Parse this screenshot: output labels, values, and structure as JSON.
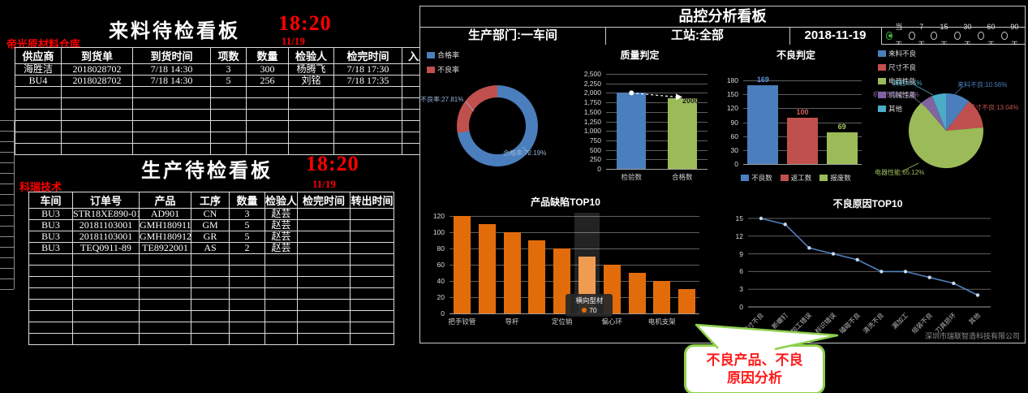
{
  "left": {
    "incoming": {
      "title": "来料待检看板",
      "clock": "18:20",
      "tag": "帝光原材料仓库",
      "date": "11/19",
      "columns": [
        "供应商",
        "到货单",
        "到货时间",
        "项数",
        "数量",
        "检验人",
        "检完时间",
        "入库时间"
      ],
      "rows": [
        [
          "海胜洁",
          "2018028702",
          "7/18 14:30",
          "3",
          "300",
          "杨腾飞",
          "7/18 17:30",
          ""
        ],
        [
          "BU4",
          "2018028702",
          "7/18 14:30",
          "5",
          "256",
          "刘铭",
          "7/18 17:35",
          ""
        ]
      ],
      "empty_rows": 6
    },
    "production": {
      "title": "生产待检看板",
      "clock": "18:20",
      "tag": "科瑞技术",
      "date": "11/19",
      "columns": [
        "车间",
        "订单号",
        "产品",
        "工序",
        "数量",
        "检验人",
        "检完时间",
        "转出时间"
      ],
      "rows": [
        [
          "BU3",
          "STR18XE890-01",
          "AD901",
          "CN",
          "3",
          "赵芸",
          "",
          ""
        ],
        [
          "BU3",
          "20181103001",
          "GMH180911",
          "GM",
          "5",
          "赵芸",
          "",
          ""
        ],
        [
          "BU3",
          "20181103001",
          "GMH180912",
          "GR",
          "5",
          "赵芸",
          "",
          ""
        ],
        [
          "BU3",
          "TEQ0911-89",
          "TE8922001",
          "AS",
          "2",
          "赵芸",
          "",
          ""
        ]
      ],
      "empty_rows": 8
    }
  },
  "panel": {
    "title": "品控分析看板",
    "filters": {
      "department": "生产部门:一车间",
      "station": "工站:全部",
      "date": "2018-11-19"
    },
    "periods": [
      {
        "label": "当天",
        "selected": true
      },
      {
        "label": "7天",
        "selected": false
      },
      {
        "label": "15天",
        "selected": false
      },
      {
        "label": "30天",
        "selected": false
      },
      {
        "label": "60天",
        "selected": false
      },
      {
        "label": "90天",
        "selected": false
      }
    ],
    "company": "深圳市瑞联智造科技有限公司",
    "callout": [
      "不良产品、不良",
      "原因分析"
    ]
  },
  "chart_data": [
    {
      "id": "pass-rate-donut",
      "type": "donut",
      "legend": [
        {
          "name": "合格率",
          "color": "#4a7ebc"
        },
        {
          "name": "不良率",
          "color": "#c0504d"
        }
      ],
      "series": [
        {
          "name": "合格率",
          "value": 72.19,
          "color": "#4a7ebc"
        },
        {
          "name": "不良率",
          "value": 27.81,
          "color": "#c0504d"
        }
      ],
      "labels": [
        {
          "text": "不良率:27.81%",
          "color": "#95b3d7"
        },
        {
          "text": "合格率:72.19%",
          "color": "#95b3d7"
        }
      ]
    },
    {
      "id": "quality-judge",
      "type": "bar",
      "title": "质量判定",
      "categories": [
        "检验数",
        "合格数"
      ],
      "values": [
        2000,
        1850
      ],
      "bar_colors": [
        "#4a7ebc",
        "#9bbb59"
      ],
      "ylim": [
        0,
        2500
      ],
      "ytick_step": 250,
      "annotation": {
        "text": "2000"
      }
    },
    {
      "id": "defect-judge",
      "type": "bar",
      "title": "不良判定",
      "values": [
        169,
        100,
        69
      ],
      "value_labels": [
        "169",
        "100",
        "69"
      ],
      "value_label_colors": [
        "#5f8fd6",
        "#d4615d",
        "#a5c661"
      ],
      "bar_colors": [
        "#4a7ebc",
        "#c0504d",
        "#9bbb59"
      ],
      "ylim": [
        0,
        180
      ],
      "ytick_step": 30,
      "legend": [
        {
          "name": "不良数",
          "color": "#4a7ebc"
        },
        {
          "name": "返工数",
          "color": "#c0504d"
        },
        {
          "name": "报废数",
          "color": "#9bbb59"
        }
      ]
    },
    {
      "id": "defect-category-pie",
      "type": "pie",
      "series": [
        {
          "name": "来料不良",
          "value": 10.56,
          "color": "#4a7ebc"
        },
        {
          "name": "尺寸不良",
          "value": 13.04,
          "color": "#c0504d"
        },
        {
          "name": "电器性能",
          "value": 65.12,
          "color": "#9bbb59"
        },
        {
          "name": "机械性能",
          "value": 5.18,
          "color": "#8064a2"
        },
        {
          "name": "其他",
          "value": 6.1,
          "color": "#4bacc6"
        }
      ],
      "labels": [
        "来料不良:10.56%",
        "尺寸不良:13.04%",
        "电器性能:65.12%",
        "机械性能:5.18%",
        "其他:6.1%"
      ]
    },
    {
      "id": "product-defect-top10",
      "type": "bar",
      "title": "产品缺陷TOP10",
      "values": [
        120,
        110,
        100,
        90,
        80,
        70,
        60,
        50,
        40,
        30
      ],
      "xtick_labels": [
        "把手铰管",
        "",
        "导杆",
        "",
        "定位销",
        "",
        "偏心环",
        "",
        "电机支架",
        ""
      ],
      "bar_color": "#e36c0a",
      "highlight_color": "#ef9b52",
      "highlight": {
        "index": 5,
        "name": "横向型材",
        "value": "70"
      },
      "ylim": [
        0,
        120
      ],
      "ytick_step": 20
    },
    {
      "id": "defect-cause-top10",
      "type": "line",
      "title": "不良原因TOP10",
      "categories": [
        "尺寸不良",
        "断螺钉",
        "加工错误",
        "标识错误",
        "磕碰不良",
        "清洗不良",
        "漏加工",
        "组装不良",
        "刀具损坏",
        "其他"
      ],
      "values": [
        15,
        14,
        10,
        9,
        8,
        6,
        6,
        5,
        4,
        2
      ],
      "line_color": "#4f81bd",
      "marker_color": "#c9daf0",
      "ylim": [
        0,
        15
      ],
      "ytick_step": 3
    }
  ],
  "colors": {
    "alert_red": "#ff0000",
    "panel_border": "#c8c8c8",
    "radio_selected": "#46b33c",
    "callout_border": "#8ed04e",
    "callout_text": "#ff1a1a"
  }
}
